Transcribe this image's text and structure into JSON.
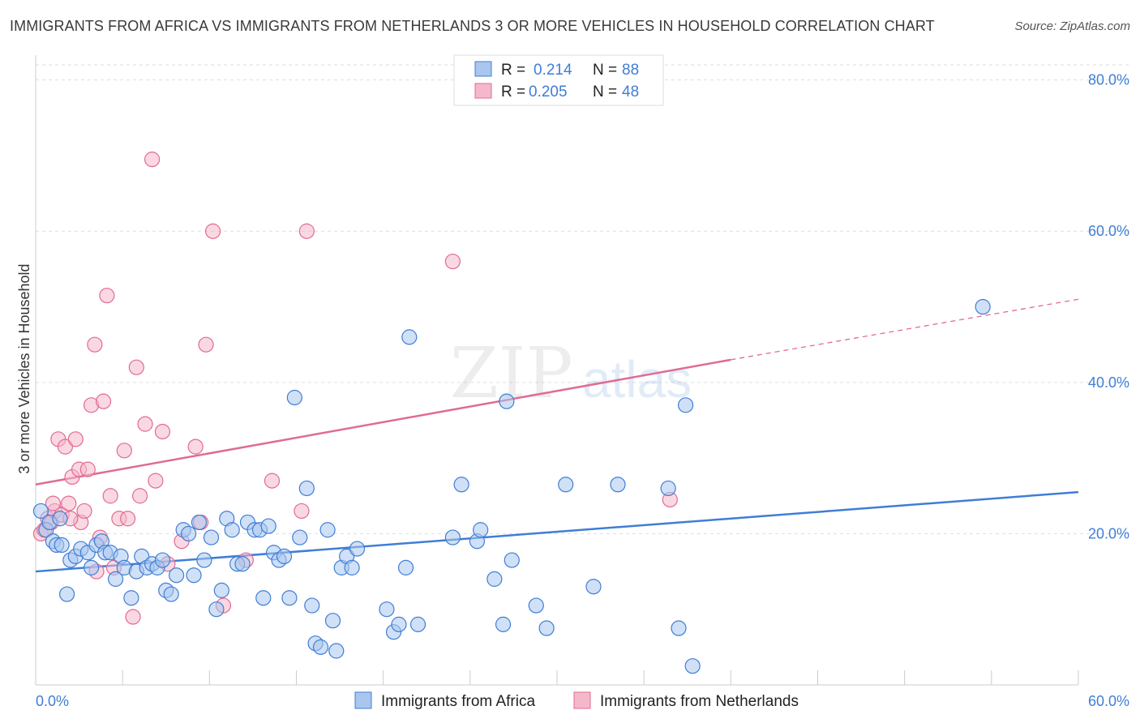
{
  "title": "IMMIGRANTS FROM AFRICA VS IMMIGRANTS FROM NETHERLANDS 3 OR MORE VEHICLES IN HOUSEHOLD CORRELATION CHART",
  "source": "Source: ZipAtlas.com",
  "colors": {
    "africa": "#3f7ed6",
    "africa_fill": "#a9c6ef",
    "netherlands": "#e06b93",
    "netherlands_fill": "#f5b8cb",
    "grid": "#dddddd",
    "axis_tick_text": "#3f7ed6"
  },
  "chart_data": {
    "type": "scatter",
    "title": "IMMIGRANTS FROM AFRICA VS IMMIGRANTS FROM NETHERLANDS 3 OR MORE VEHICLES IN HOUSEHOLD CORRELATION CHART",
    "xlabel": "",
    "ylabel": "3 or more Vehicles in Household",
    "xlim": [
      0,
      60
    ],
    "ylim": [
      0,
      82
    ],
    "x_tick_labels": [
      "0.0%",
      "60.0%"
    ],
    "y_ticks": [
      20,
      40,
      60,
      80
    ],
    "y_tick_labels": [
      "20.0%",
      "40.0%",
      "60.0%",
      "80.0%"
    ],
    "grid": true,
    "legend": [
      {
        "series": "Immigrants from Africa",
        "r_label": "R =",
        "r": "0.214",
        "n_label": "N =",
        "n": "88"
      },
      {
        "series": "Immigrants from Netherlands",
        "r_label": "R =",
        "r": "0.205",
        "n_label": "N =",
        "n": "48"
      }
    ],
    "series": [
      {
        "name": "Immigrants from Africa",
        "trend": {
          "x0": 0,
          "y0": 15.0,
          "x1": 60,
          "y1": 25.5
        },
        "points": [
          [
            0.3,
            23.0
          ],
          [
            0.6,
            20.5
          ],
          [
            0.8,
            21.5
          ],
          [
            1.0,
            19.0
          ],
          [
            1.2,
            18.5
          ],
          [
            1.5,
            18.5
          ],
          [
            1.8,
            12.0
          ],
          [
            2.0,
            16.5
          ],
          [
            2.3,
            17.0
          ],
          [
            2.6,
            18.0
          ],
          [
            3.0,
            17.5
          ],
          [
            3.2,
            15.5
          ],
          [
            3.5,
            18.5
          ],
          [
            3.8,
            19.0
          ],
          [
            4.0,
            17.5
          ],
          [
            4.3,
            17.5
          ],
          [
            4.6,
            14.0
          ],
          [
            4.9,
            17.0
          ],
          [
            5.1,
            15.5
          ],
          [
            5.5,
            11.5
          ],
          [
            5.8,
            15.0
          ],
          [
            6.1,
            17.0
          ],
          [
            6.4,
            15.5
          ],
          [
            6.7,
            16.0
          ],
          [
            7.0,
            15.5
          ],
          [
            7.3,
            16.5
          ],
          [
            7.5,
            12.5
          ],
          [
            7.8,
            12.0
          ],
          [
            8.1,
            14.5
          ],
          [
            8.5,
            20.5
          ],
          [
            8.8,
            20.0
          ],
          [
            9.1,
            14.5
          ],
          [
            9.4,
            21.5
          ],
          [
            9.7,
            16.5
          ],
          [
            10.1,
            19.5
          ],
          [
            10.4,
            10.0
          ],
          [
            10.7,
            12.5
          ],
          [
            11.0,
            22.0
          ],
          [
            11.3,
            20.5
          ],
          [
            11.6,
            16.0
          ],
          [
            11.9,
            16.0
          ],
          [
            12.2,
            21.5
          ],
          [
            12.6,
            20.5
          ],
          [
            12.9,
            20.5
          ],
          [
            13.1,
            11.5
          ],
          [
            13.4,
            21.0
          ],
          [
            13.7,
            17.5
          ],
          [
            14.0,
            16.5
          ],
          [
            14.3,
            17.0
          ],
          [
            14.6,
            11.5
          ],
          [
            14.9,
            38.0
          ],
          [
            15.2,
            19.5
          ],
          [
            15.6,
            26.0
          ],
          [
            15.9,
            10.5
          ],
          [
            16.1,
            5.5
          ],
          [
            16.4,
            5.0
          ],
          [
            16.8,
            20.5
          ],
          [
            17.1,
            8.5
          ],
          [
            17.3,
            4.5
          ],
          [
            17.6,
            15.5
          ],
          [
            17.9,
            17.0
          ],
          [
            18.2,
            15.5
          ],
          [
            18.5,
            18.0
          ],
          [
            20.2,
            10.0
          ],
          [
            20.6,
            7.0
          ],
          [
            20.9,
            8.0
          ],
          [
            21.3,
            15.5
          ],
          [
            21.5,
            46.0
          ],
          [
            22.0,
            8.0
          ],
          [
            24.0,
            19.5
          ],
          [
            24.5,
            26.5
          ],
          [
            25.4,
            19.0
          ],
          [
            25.6,
            20.5
          ],
          [
            26.4,
            14.0
          ],
          [
            26.9,
            8.0
          ],
          [
            27.1,
            37.5
          ],
          [
            27.4,
            16.5
          ],
          [
            28.8,
            10.5
          ],
          [
            29.4,
            7.5
          ],
          [
            32.1,
            13.0
          ],
          [
            30.5,
            26.5
          ],
          [
            33.5,
            26.5
          ],
          [
            36.4,
            26.0
          ],
          [
            37.0,
            7.5
          ],
          [
            37.4,
            37.0
          ],
          [
            37.8,
            2.5
          ],
          [
            54.5,
            50.0
          ],
          [
            1.4,
            22.0
          ]
        ]
      },
      {
        "name": "Immigrants from Netherlands",
        "trend": {
          "x0": 0,
          "y0": 26.5,
          "x1": 40,
          "y1": 43.0
        },
        "trend_dashed": {
          "x0": 40,
          "y0": 43.0,
          "x1": 60,
          "y1": 51.0
        },
        "points": [
          [
            0.3,
            20.0
          ],
          [
            0.5,
            20.5
          ],
          [
            0.7,
            22.0
          ],
          [
            0.9,
            21.5
          ],
          [
            1.1,
            23.0
          ],
          [
            1.3,
            32.5
          ],
          [
            1.5,
            22.5
          ],
          [
            1.7,
            31.5
          ],
          [
            1.9,
            24.0
          ],
          [
            2.1,
            27.5
          ],
          [
            2.3,
            32.5
          ],
          [
            2.5,
            28.5
          ],
          [
            2.6,
            21.5
          ],
          [
            2.8,
            23.0
          ],
          [
            3.0,
            28.5
          ],
          [
            3.2,
            37.0
          ],
          [
            3.4,
            45.0
          ],
          [
            3.5,
            15.0
          ],
          [
            3.7,
            19.5
          ],
          [
            3.9,
            37.5
          ],
          [
            4.1,
            51.5
          ],
          [
            4.3,
            25.0
          ],
          [
            4.5,
            15.5
          ],
          [
            4.8,
            22.0
          ],
          [
            5.1,
            31.0
          ],
          [
            5.3,
            22.0
          ],
          [
            5.6,
            9.0
          ],
          [
            5.8,
            42.0
          ],
          [
            6.0,
            25.0
          ],
          [
            6.3,
            34.5
          ],
          [
            6.7,
            69.5
          ],
          [
            6.9,
            27.0
          ],
          [
            7.3,
            33.5
          ],
          [
            7.6,
            16.0
          ],
          [
            8.4,
            19.0
          ],
          [
            9.2,
            31.5
          ],
          [
            9.5,
            21.5
          ],
          [
            9.8,
            45.0
          ],
          [
            10.2,
            60.0
          ],
          [
            10.8,
            10.5
          ],
          [
            12.1,
            16.5
          ],
          [
            13.6,
            27.0
          ],
          [
            15.3,
            23.0
          ],
          [
            15.6,
            60.0
          ],
          [
            24.0,
            56.0
          ],
          [
            36.5,
            24.5
          ],
          [
            2.0,
            22.0
          ],
          [
            1.0,
            24.0
          ]
        ]
      }
    ]
  },
  "watermark": {
    "part1": "ZIP",
    "part2": "atlas"
  },
  "bottom_legend": [
    "Immigrants from Africa",
    "Immigrants from Netherlands"
  ]
}
